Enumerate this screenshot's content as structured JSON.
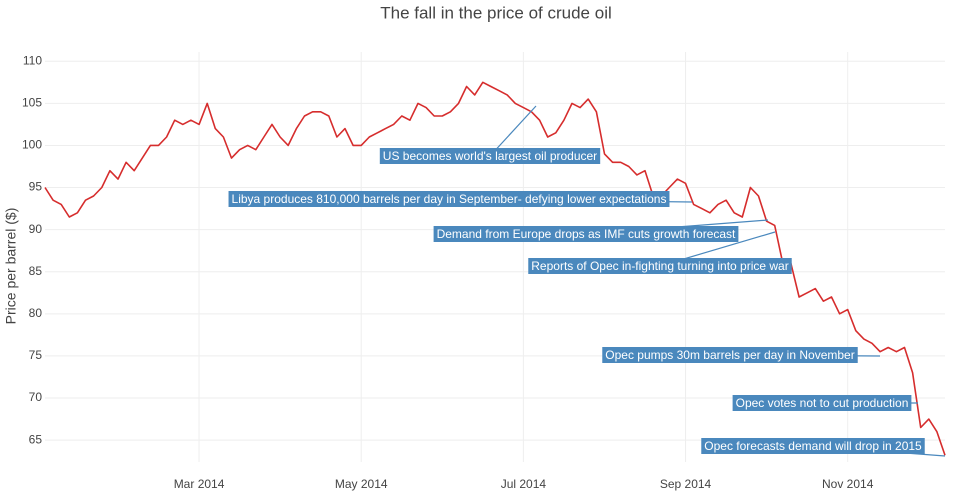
{
  "chart_data": {
    "type": "line",
    "title": "The fall in the price of crude oil",
    "y_label": "Price per barrel ($)",
    "color": "#d62d2d",
    "annotation_color": "#4a88bd",
    "grid": true,
    "ylim": [
      62.4,
      111.1
    ],
    "yticks": [
      65,
      70,
      75,
      80,
      85,
      90,
      95,
      100,
      105,
      110
    ],
    "categories": [
      null,
      null,
      null,
      null,
      null,
      null,
      null,
      null,
      null,
      null,
      null,
      null,
      null,
      null,
      null,
      null,
      null,
      null,
      null,
      "Mar 2014",
      null,
      null,
      null,
      null,
      null,
      null,
      null,
      null,
      null,
      null,
      null,
      null,
      null,
      null,
      null,
      null,
      null,
      null,
      null,
      "May 2014",
      null,
      null,
      null,
      null,
      null,
      null,
      null,
      null,
      null,
      null,
      null,
      null,
      null,
      null,
      null,
      null,
      null,
      null,
      null,
      "Jul 2014",
      null,
      null,
      null,
      null,
      null,
      null,
      null,
      null,
      null,
      null,
      null,
      null,
      null,
      null,
      null,
      null,
      null,
      null,
      null,
      "Sep 2014",
      null,
      null,
      null,
      null,
      null,
      null,
      null,
      null,
      null,
      null,
      null,
      null,
      null,
      null,
      null,
      null,
      null,
      null,
      null,
      "Nov 2014",
      null,
      null,
      null,
      null,
      null,
      null,
      null,
      null,
      null,
      null,
      null,
      null
    ],
    "values": [
      95,
      93.5,
      93,
      91.5,
      92,
      93.5,
      94,
      95,
      97,
      96,
      98,
      97,
      98.5,
      100,
      100,
      101,
      103,
      102.5,
      103,
      102.5,
      105,
      102,
      101,
      98.5,
      99.5,
      100,
      99.5,
      101,
      102.5,
      101,
      100,
      102,
      103.5,
      104,
      104,
      103.5,
      101,
      102,
      100,
      100,
      101,
      101.5,
      102,
      102.5,
      103.5,
      103,
      105,
      104.5,
      103.5,
      103.5,
      104,
      105,
      107,
      106,
      107.5,
      107,
      106.5,
      106,
      105,
      104.5,
      104,
      103,
      101,
      101.5,
      103,
      105,
      104.5,
      105.5,
      104,
      99,
      98,
      98,
      97.5,
      96.5,
      97,
      94,
      94,
      95,
      96,
      95.5,
      93,
      92.5,
      92,
      93,
      93.5,
      92,
      91.5,
      95,
      94,
      91,
      90.5,
      86,
      86,
      82,
      82.5,
      83,
      81.5,
      82,
      80,
      80.5,
      78,
      77,
      76.5,
      75.5,
      76,
      75.5,
      76,
      73,
      66.5,
      67.5,
      66,
      63.2
    ],
    "annotations": [
      "US becomes world's largest oil producer",
      "Libya produces 810,000 barrels per day in September- defying lower expectations",
      "Demand from Europe drops as IMF cuts growth forecast",
      "Reports of Opec in-fighting turning into price war",
      "Opec pumps 30m barrels per day in November",
      "Opec votes not to cut production",
      "Opec forecasts demand will drop in 2015"
    ]
  }
}
